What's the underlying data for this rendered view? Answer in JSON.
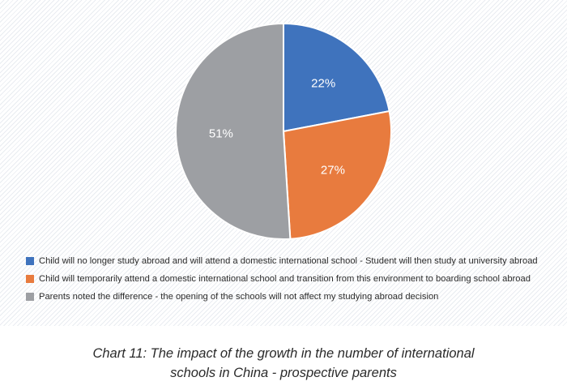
{
  "chart_data": {
    "type": "pie",
    "categories": [
      "Child will no longer study abroad and will attend a domestic international school - Student will then study at university abroad",
      "Child will temporarily attend a domestic international school and transition from this environment to boarding school abroad",
      "Parents noted the difference - the opening of the schools will not affect my studying abroad decision"
    ],
    "values": [
      22,
      27,
      51
    ],
    "value_labels": [
      "22%",
      "27%",
      "51%"
    ],
    "colors": [
      "#3f73bd",
      "#e87b3e",
      "#9d9fa3"
    ],
    "legend_position": "bottom-left",
    "title": ""
  },
  "caption": {
    "line1": "Chart 11: The impact of the growth in the number of international",
    "line2": "schools in China - prospective parents"
  }
}
